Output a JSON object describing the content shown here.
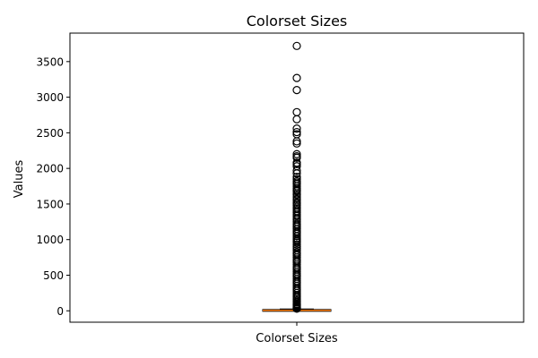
{
  "chart_data": {
    "type": "boxplot",
    "title": "Colorset Sizes",
    "xlabel": "",
    "ylabel": "Values",
    "categories": [
      "Colorset Sizes"
    ],
    "ylim": [
      -160,
      3900
    ],
    "yticks": [
      0,
      500,
      1000,
      1500,
      2000,
      2500,
      3000,
      3500
    ],
    "grid": false,
    "box": {
      "whisker_low": 0,
      "q1": 3,
      "median": 6,
      "q3": 12,
      "whisker_high": 25
    },
    "outliers": [
      3720,
      3270,
      3100,
      2790,
      2690,
      2560,
      2510,
      2480,
      2380,
      2350,
      2200,
      2170,
      2150,
      2080,
      2060,
      2030,
      1970,
      1930,
      1880,
      1850,
      1820,
      1800,
      1780,
      1750,
      1720,
      1700,
      1690,
      1680,
      1650,
      1630,
      1600,
      1570,
      1550,
      1520,
      1500,
      1480,
      1450,
      1430,
      1400,
      1380,
      1350,
      1330,
      1300,
      1280,
      1250,
      1220,
      1200,
      1180,
      1150,
      1120,
      1100,
      1080,
      1050,
      1020,
      1000,
      980,
      960,
      930,
      900,
      880,
      850,
      820,
      800,
      780,
      750,
      720,
      700,
      680,
      650,
      620,
      600,
      580,
      550,
      520,
      500,
      480,
      450,
      420,
      400,
      380,
      350,
      320,
      300,
      280,
      250,
      220,
      200,
      180,
      160,
      140,
      120,
      100,
      90,
      80,
      70,
      60,
      50,
      45,
      40,
      35,
      30
    ],
    "colors": {
      "median": "#ff7f0e",
      "box": "#000000",
      "flier": "#000000"
    }
  }
}
